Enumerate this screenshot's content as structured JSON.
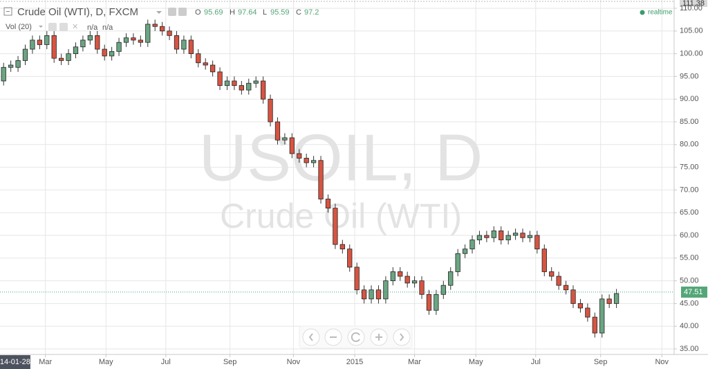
{
  "chart_data": {
    "type": "candlestick",
    "title": "Crude Oil (WTI), D, FXCM",
    "ohlc_header": {
      "o_label": "O",
      "o": 95.69,
      "h_label": "H",
      "h": 97.64,
      "l_label": "L",
      "l": 95.59,
      "c_label": "C",
      "c": 97.2
    },
    "volume_header": {
      "name": "Vol (20)",
      "v1": "n/a",
      "v2": "n/a"
    },
    "status": "realtime",
    "watermark": {
      "symbol": "USOIL, D",
      "name": "Crude Oil (WTI)"
    },
    "up_color": "#6ba583",
    "down_color": "#d75442",
    "open": [
      94,
      97,
      97,
      98.5,
      101,
      103,
      102,
      104,
      99,
      98.5,
      100,
      101.5,
      103,
      104,
      101,
      99.5,
      100.5,
      102.5,
      103.5,
      103,
      102.5,
      106.5,
      106,
      105,
      104,
      101,
      103,
      100,
      98,
      97.5,
      96,
      93,
      94,
      93,
      92,
      93.5,
      94,
      90,
      85,
      81,
      81.5,
      78,
      77,
      76,
      76.5,
      68,
      66,
      58,
      57,
      53,
      48,
      46,
      48,
      46,
      50,
      52,
      51,
      49.5,
      50,
      47,
      43.5,
      47,
      49,
      52,
      56,
      57,
      59,
      60,
      59.5,
      61,
      59,
      60,
      60.5,
      59.5,
      60,
      57,
      52,
      51,
      49,
      48,
      45,
      44,
      42,
      38.5,
      46,
      45
    ],
    "high": [
      98,
      98.5,
      99.5,
      102,
      104,
      104,
      105,
      105,
      100,
      101,
      102.5,
      104,
      105,
      105,
      102,
      101.5,
      103.5,
      104.5,
      104.5,
      104,
      107.5,
      107.5,
      107,
      106,
      105,
      104,
      104,
      101,
      99,
      98.5,
      97,
      95,
      95,
      94,
      94.5,
      95,
      95,
      91,
      86,
      82.5,
      82.5,
      79,
      78,
      77.5,
      77.5,
      69,
      67,
      59,
      58,
      54,
      49,
      49,
      49,
      51,
      53,
      53,
      52,
      51,
      51,
      48,
      48,
      50,
      53,
      57,
      58,
      60,
      61,
      61,
      62,
      62,
      61,
      61.5,
      61.5,
      61,
      61,
      58,
      53,
      52,
      50,
      49,
      46,
      45,
      43,
      47,
      47,
      48.2
    ],
    "low": [
      93,
      96,
      96,
      97.5,
      100,
      101,
      101,
      98,
      97.5,
      97.5,
      99,
      100.5,
      102,
      100,
      98.5,
      98.5,
      99.5,
      101.5,
      102,
      101.5,
      101.5,
      105,
      104,
      103,
      100,
      100,
      99,
      97,
      96.5,
      95,
      92,
      92,
      92,
      91,
      91,
      92.5,
      89,
      84,
      80,
      80,
      77,
      76,
      75,
      75,
      67,
      65,
      57,
      56,
      52,
      47,
      45,
      45,
      45,
      45,
      49,
      50,
      48.5,
      48.5,
      46,
      42.5,
      42.5,
      46,
      48,
      51,
      55,
      56,
      58,
      58.5,
      58.5,
      58,
      58,
      59,
      58.5,
      58.5,
      56,
      51,
      50,
      48,
      47,
      44,
      43,
      41,
      37.5,
      37.5,
      44,
      44
    ],
    "close": [
      97,
      97.5,
      98.5,
      101,
      103,
      102,
      104,
      99,
      98.5,
      100,
      101.5,
      103,
      104,
      101,
      99.5,
      100.5,
      102.5,
      103.5,
      103,
      102.5,
      106.5,
      106,
      105,
      104,
      101,
      103,
      100,
      98,
      97.5,
      96,
      93,
      94,
      93,
      92,
      93.5,
      94,
      90,
      85,
      81,
      81.5,
      78,
      77,
      76,
      76.5,
      68,
      66,
      58,
      57,
      53,
      48,
      46,
      48,
      46,
      50,
      52,
      51,
      49.5,
      50,
      47,
      43.5,
      47,
      49,
      52,
      56,
      57,
      59,
      60,
      59.5,
      61,
      59,
      60,
      60.5,
      59.5,
      60,
      57,
      52,
      51,
      49,
      48,
      45,
      44,
      42,
      38.5,
      46,
      45,
      47.2
    ],
    "last_price": 47.51,
    "top_price": 111.38,
    "xlim": [
      -0.5,
      93
    ],
    "xticks": [
      {
        "value": 1.6,
        "label": "14-01-28"
      },
      {
        "value": 5.8,
        "label": "Mar"
      },
      {
        "value": 14.2,
        "label": "May"
      },
      {
        "value": 22.5,
        "label": "Jul"
      },
      {
        "value": 31.4,
        "label": "Sep"
      },
      {
        "value": 40.2,
        "label": "Nov"
      },
      {
        "value": 48.7,
        "label": "2015"
      },
      {
        "value": 57.0,
        "label": "Mar"
      },
      {
        "value": 65.5,
        "label": "May"
      },
      {
        "value": 73.8,
        "label": "Jul"
      },
      {
        "value": 82.8,
        "label": "Sep"
      },
      {
        "value": 91.3,
        "label": "Nov"
      }
    ],
    "ylim": [
      33.78,
      111.83
    ],
    "yticks": [
      {
        "value": 35,
        "label": "35.00"
      },
      {
        "value": 40,
        "label": "40.00"
      },
      {
        "value": 45,
        "label": "45.00"
      },
      {
        "value": 50,
        "label": "50.00"
      },
      {
        "value": 55,
        "label": "55.00"
      },
      {
        "value": 60,
        "label": "60.00"
      },
      {
        "value": 65,
        "label": "65.00"
      },
      {
        "value": 70,
        "label": "70.00"
      },
      {
        "value": 75,
        "label": "75.00"
      },
      {
        "value": 80,
        "label": "80.00"
      },
      {
        "value": 85,
        "label": "85.00"
      },
      {
        "value": 90,
        "label": "90.00"
      },
      {
        "value": 95,
        "label": "95.00"
      },
      {
        "value": 100,
        "label": "100.00"
      },
      {
        "value": 105,
        "label": "105.00"
      },
      {
        "value": 110,
        "label": "110.00"
      }
    ],
    "grid": true
  }
}
